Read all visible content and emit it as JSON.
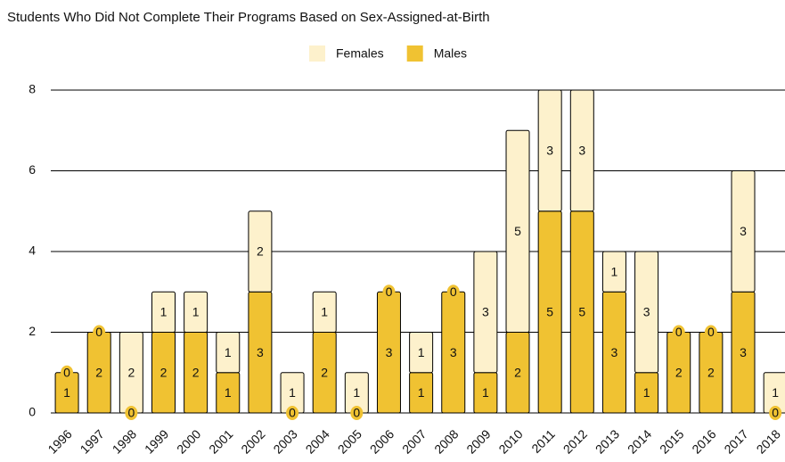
{
  "chart_data": {
    "type": "stacked_bar",
    "title": "Students Who Did Not Complete Their Programs Based on Sex-Assigned-at-Birth",
    "categories": [
      "1996",
      "1997",
      "1998",
      "1999",
      "2000",
      "2001",
      "2002",
      "2003",
      "2004",
      "2005",
      "2006",
      "2007",
      "2008",
      "2009",
      "2010",
      "2011",
      "2012",
      "2013",
      "2014",
      "2015",
      "2016",
      "2017",
      "2018"
    ],
    "series": [
      {
        "name": "Females",
        "color": "#fdf1cc",
        "values": [
          0,
          0,
          2,
          1,
          1,
          1,
          2,
          1,
          1,
          1,
          0,
          1,
          0,
          3,
          5,
          3,
          3,
          1,
          3,
          0,
          0,
          3,
          1
        ]
      },
      {
        "name": "Males",
        "color": "#f0c232",
        "values": [
          1,
          2,
          0,
          2,
          2,
          1,
          3,
          0,
          2,
          0,
          3,
          1,
          3,
          1,
          2,
          5,
          5,
          3,
          1,
          2,
          2,
          3,
          0
        ]
      }
    ],
    "ylim": [
      0,
      8
    ],
    "yticks": [
      0,
      2,
      4,
      6,
      8
    ],
    "grid": true
  }
}
